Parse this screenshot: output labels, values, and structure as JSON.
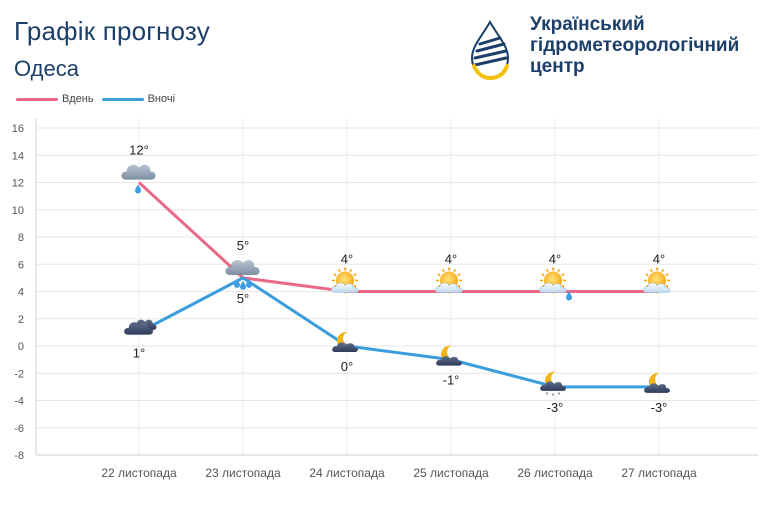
{
  "header": {
    "title": "Графік прогнозу",
    "city": "Одеса"
  },
  "org": {
    "line1": "Український",
    "line2": "гідрометеорологічний",
    "line3": "центр",
    "logo_icon": "water-drop-logo-icon",
    "colors": {
      "blue": "#1c3f69",
      "yellow": "#f4c20d"
    }
  },
  "chart_data": {
    "type": "line",
    "title": "",
    "xlabel": "",
    "ylabel": "",
    "categories": [
      "22 листопада",
      "23 листопада",
      "24 листопада",
      "25 листопада",
      "26 листопада",
      "27 листопада"
    ],
    "ylim": [
      -8,
      16
    ],
    "yticks": [
      -8,
      -6,
      -4,
      -2,
      0,
      2,
      4,
      6,
      8,
      10,
      12,
      14,
      16
    ],
    "grid": true,
    "legend": "top-left",
    "series": [
      {
        "name": "Вдень",
        "color": "#ea6a86",
        "values": [
          12,
          5,
          4,
          4,
          4,
          4
        ],
        "labels": [
          "12°",
          "5°",
          "4°",
          "4°",
          "4°",
          "4°"
        ],
        "icons": [
          "cloud-drizzle-icon",
          "cloud-rain-icon",
          "sun-behind-cloud-icon",
          "sun-behind-cloud-icon",
          "sun-cloud-drizzle-icon",
          "sun-behind-cloud-icon"
        ]
      },
      {
        "name": "Вночі",
        "color": "#3b9ddd",
        "values": [
          1,
          5,
          0,
          -1,
          -3,
          -3
        ],
        "labels": [
          "1°",
          "5°",
          "0°",
          "-1°",
          "-3°",
          "-3°"
        ],
        "icons": [
          "dark-clouds-icon",
          "",
          "moon-cloud-icon",
          "moon-cloud-icon",
          "moon-cloud-snow-icon",
          "moon-cloud-icon"
        ]
      }
    ]
  }
}
